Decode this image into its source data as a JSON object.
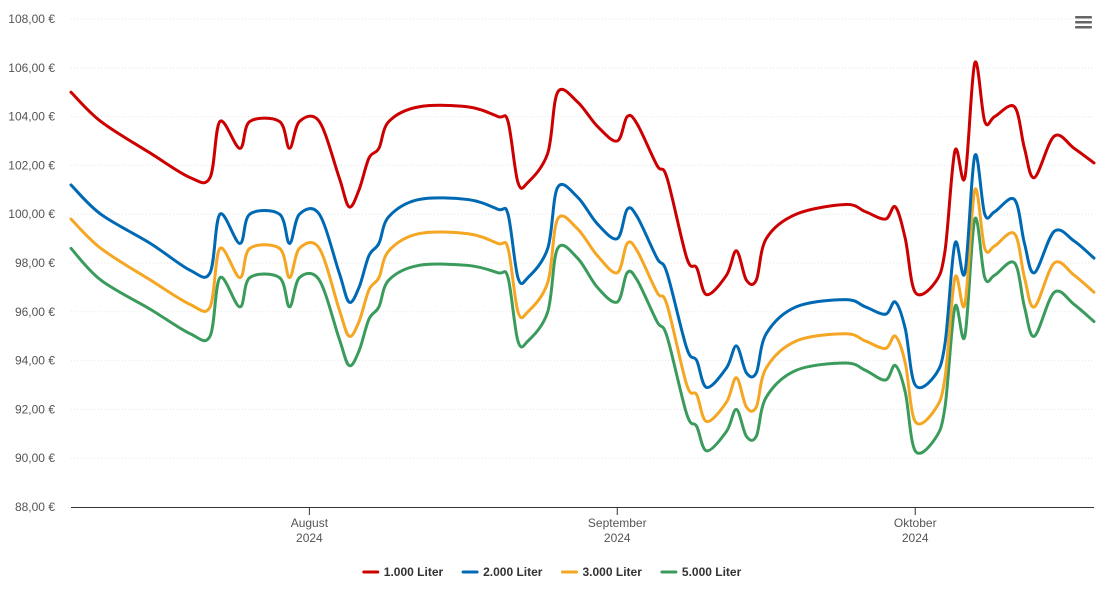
{
  "chart_data": {
    "type": "line",
    "title": "",
    "xlabel": "",
    "ylabel": "",
    "ylim": [
      88,
      108
    ],
    "y_ticks": [
      "88,00 €",
      "90,00 €",
      "92,00 €",
      "94,00 €",
      "96,00 €",
      "98,00 €",
      "100,00 €",
      "102,00 €",
      "104,00 €",
      "106,00 €",
      "108,00 €"
    ],
    "x_range": [
      "2024-07-08",
      "2024-10-19"
    ],
    "x_ticks": [
      {
        "date": "2024-08-01",
        "month": "August",
        "year": "2024"
      },
      {
        "date": "2024-09-01",
        "month": "September",
        "year": "2024"
      },
      {
        "date": "2024-10-01",
        "month": "Oktober",
        "year": "2024"
      }
    ],
    "grid": true,
    "legend_position": "bottom-center",
    "series": [
      {
        "name": "1.000 Liter",
        "color": "#cc0000",
        "points": [
          [
            "2024-07-08",
            105.0
          ],
          [
            "2024-07-11",
            103.8
          ],
          [
            "2024-07-16",
            102.5
          ],
          [
            "2024-07-20",
            101.5
          ],
          [
            "2024-07-22",
            101.5
          ],
          [
            "2024-07-23",
            103.8
          ],
          [
            "2024-07-25",
            102.7
          ],
          [
            "2024-07-26",
            103.8
          ],
          [
            "2024-07-29",
            103.8
          ],
          [
            "2024-07-30",
            102.7
          ],
          [
            "2024-07-31",
            103.8
          ],
          [
            "2024-08-02",
            103.8
          ],
          [
            "2024-08-04",
            101.5
          ],
          [
            "2024-08-05",
            100.3
          ],
          [
            "2024-08-06",
            101.0
          ],
          [
            "2024-08-07",
            102.3
          ],
          [
            "2024-08-08",
            102.7
          ],
          [
            "2024-08-09",
            103.8
          ],
          [
            "2024-08-12",
            104.4
          ],
          [
            "2024-08-17",
            104.4
          ],
          [
            "2024-08-20",
            104.0
          ],
          [
            "2024-08-21",
            103.8
          ],
          [
            "2024-08-22",
            101.3
          ],
          [
            "2024-08-23",
            101.3
          ],
          [
            "2024-08-25",
            102.5
          ],
          [
            "2024-08-26",
            105.0
          ],
          [
            "2024-08-28",
            104.6
          ],
          [
            "2024-08-30",
            103.6
          ],
          [
            "2024-09-01",
            103.0
          ],
          [
            "2024-09-02",
            104.0
          ],
          [
            "2024-09-03",
            103.7
          ],
          [
            "2024-09-05",
            102.0
          ],
          [
            "2024-09-06",
            101.5
          ],
          [
            "2024-09-08",
            98.2
          ],
          [
            "2024-09-09",
            97.8
          ],
          [
            "2024-09-10",
            96.7
          ],
          [
            "2024-09-12",
            97.5
          ],
          [
            "2024-09-13",
            98.5
          ],
          [
            "2024-09-14",
            97.3
          ],
          [
            "2024-09-15",
            97.3
          ],
          [
            "2024-09-16",
            99.0
          ],
          [
            "2024-09-19",
            100.0
          ],
          [
            "2024-09-24",
            100.4
          ],
          [
            "2024-09-26",
            100.1
          ],
          [
            "2024-09-28",
            99.8
          ],
          [
            "2024-09-29",
            100.3
          ],
          [
            "2024-09-30",
            99.0
          ],
          [
            "2024-10-01",
            96.8
          ],
          [
            "2024-10-03",
            97.2
          ],
          [
            "2024-10-04",
            98.5
          ],
          [
            "2024-10-05",
            102.6
          ],
          [
            "2024-10-06",
            101.5
          ],
          [
            "2024-10-07",
            106.2
          ],
          [
            "2024-10-08",
            103.8
          ],
          [
            "2024-10-09",
            104.0
          ],
          [
            "2024-10-11",
            104.4
          ],
          [
            "2024-10-12",
            102.7
          ],
          [
            "2024-10-13",
            101.5
          ],
          [
            "2024-10-15",
            103.2
          ],
          [
            "2024-10-17",
            102.7
          ],
          [
            "2024-10-19",
            102.1
          ]
        ]
      },
      {
        "name": "2.000 Liter",
        "color": "#0069b4",
        "points": [
          [
            "2024-07-08",
            101.2
          ],
          [
            "2024-07-11",
            100.0
          ],
          [
            "2024-07-16",
            98.8
          ],
          [
            "2024-07-20",
            97.7
          ],
          [
            "2024-07-22",
            97.6
          ],
          [
            "2024-07-23",
            100.0
          ],
          [
            "2024-07-25",
            98.8
          ],
          [
            "2024-07-26",
            100.0
          ],
          [
            "2024-07-29",
            100.0
          ],
          [
            "2024-07-30",
            98.8
          ],
          [
            "2024-07-31",
            100.0
          ],
          [
            "2024-08-02",
            100.0
          ],
          [
            "2024-08-04",
            97.6
          ],
          [
            "2024-08-05",
            96.4
          ],
          [
            "2024-08-06",
            97.0
          ],
          [
            "2024-08-07",
            98.3
          ],
          [
            "2024-08-08",
            98.8
          ],
          [
            "2024-08-09",
            99.9
          ],
          [
            "2024-08-12",
            100.6
          ],
          [
            "2024-08-17",
            100.6
          ],
          [
            "2024-08-20",
            100.2
          ],
          [
            "2024-08-21",
            100.0
          ],
          [
            "2024-08-22",
            97.4
          ],
          [
            "2024-08-23",
            97.4
          ],
          [
            "2024-08-25",
            98.6
          ],
          [
            "2024-08-26",
            101.1
          ],
          [
            "2024-08-28",
            100.7
          ],
          [
            "2024-08-30",
            99.6
          ],
          [
            "2024-09-01",
            99.0
          ],
          [
            "2024-09-02",
            100.2
          ],
          [
            "2024-09-03",
            99.9
          ],
          [
            "2024-09-05",
            98.2
          ],
          [
            "2024-09-06",
            97.6
          ],
          [
            "2024-09-08",
            94.5
          ],
          [
            "2024-09-09",
            94.0
          ],
          [
            "2024-09-10",
            92.9
          ],
          [
            "2024-09-12",
            93.7
          ],
          [
            "2024-09-13",
            94.6
          ],
          [
            "2024-09-14",
            93.5
          ],
          [
            "2024-09-15",
            93.5
          ],
          [
            "2024-09-16",
            95.1
          ],
          [
            "2024-09-19",
            96.2
          ],
          [
            "2024-09-24",
            96.5
          ],
          [
            "2024-09-26",
            96.2
          ],
          [
            "2024-09-28",
            95.9
          ],
          [
            "2024-09-29",
            96.4
          ],
          [
            "2024-09-30",
            95.3
          ],
          [
            "2024-10-01",
            93.0
          ],
          [
            "2024-10-03",
            93.4
          ],
          [
            "2024-10-04",
            94.7
          ],
          [
            "2024-10-05",
            98.8
          ],
          [
            "2024-10-06",
            97.6
          ],
          [
            "2024-10-07",
            102.4
          ],
          [
            "2024-10-08",
            100.0
          ],
          [
            "2024-10-09",
            100.1
          ],
          [
            "2024-10-11",
            100.6
          ],
          [
            "2024-10-12",
            98.8
          ],
          [
            "2024-10-13",
            97.6
          ],
          [
            "2024-10-15",
            99.3
          ],
          [
            "2024-10-17",
            98.9
          ],
          [
            "2024-10-19",
            98.2
          ]
        ]
      },
      {
        "name": "3.000 Liter",
        "color": "#f5a623",
        "points": [
          [
            "2024-07-08",
            99.8
          ],
          [
            "2024-07-11",
            98.6
          ],
          [
            "2024-07-16",
            97.3
          ],
          [
            "2024-07-20",
            96.3
          ],
          [
            "2024-07-22",
            96.2
          ],
          [
            "2024-07-23",
            98.6
          ],
          [
            "2024-07-25",
            97.4
          ],
          [
            "2024-07-26",
            98.6
          ],
          [
            "2024-07-29",
            98.6
          ],
          [
            "2024-07-30",
            97.4
          ],
          [
            "2024-07-31",
            98.6
          ],
          [
            "2024-08-02",
            98.6
          ],
          [
            "2024-08-04",
            96.1
          ],
          [
            "2024-08-05",
            95.0
          ],
          [
            "2024-08-06",
            95.6
          ],
          [
            "2024-08-07",
            96.9
          ],
          [
            "2024-08-08",
            97.4
          ],
          [
            "2024-08-09",
            98.5
          ],
          [
            "2024-08-12",
            99.2
          ],
          [
            "2024-08-17",
            99.2
          ],
          [
            "2024-08-20",
            98.8
          ],
          [
            "2024-08-21",
            98.6
          ],
          [
            "2024-08-22",
            96.0
          ],
          [
            "2024-08-23",
            96.0
          ],
          [
            "2024-08-25",
            97.2
          ],
          [
            "2024-08-26",
            99.8
          ],
          [
            "2024-08-28",
            99.4
          ],
          [
            "2024-08-30",
            98.3
          ],
          [
            "2024-09-01",
            97.6
          ],
          [
            "2024-09-02",
            98.8
          ],
          [
            "2024-09-03",
            98.5
          ],
          [
            "2024-09-05",
            96.8
          ],
          [
            "2024-09-06",
            96.3
          ],
          [
            "2024-09-08",
            93.0
          ],
          [
            "2024-09-09",
            92.6
          ],
          [
            "2024-09-10",
            91.5
          ],
          [
            "2024-09-12",
            92.3
          ],
          [
            "2024-09-13",
            93.3
          ],
          [
            "2024-09-14",
            92.1
          ],
          [
            "2024-09-15",
            92.1
          ],
          [
            "2024-09-16",
            93.7
          ],
          [
            "2024-09-19",
            94.8
          ],
          [
            "2024-09-24",
            95.1
          ],
          [
            "2024-09-26",
            94.8
          ],
          [
            "2024-09-28",
            94.5
          ],
          [
            "2024-09-29",
            95.0
          ],
          [
            "2024-09-30",
            93.9
          ],
          [
            "2024-10-01",
            91.5
          ],
          [
            "2024-10-03",
            92.0
          ],
          [
            "2024-10-04",
            93.3
          ],
          [
            "2024-10-05",
            97.4
          ],
          [
            "2024-10-06",
            96.3
          ],
          [
            "2024-10-07",
            101.0
          ],
          [
            "2024-10-08",
            98.6
          ],
          [
            "2024-10-09",
            98.7
          ],
          [
            "2024-10-11",
            99.2
          ],
          [
            "2024-10-12",
            97.4
          ],
          [
            "2024-10-13",
            96.2
          ],
          [
            "2024-10-15",
            98.0
          ],
          [
            "2024-10-17",
            97.5
          ],
          [
            "2024-10-19",
            96.8
          ]
        ]
      },
      {
        "name": "5.000 Liter",
        "color": "#3a9b5c",
        "points": [
          [
            "2024-07-08",
            98.6
          ],
          [
            "2024-07-11",
            97.3
          ],
          [
            "2024-07-16",
            96.1
          ],
          [
            "2024-07-20",
            95.1
          ],
          [
            "2024-07-22",
            95.0
          ],
          [
            "2024-07-23",
            97.4
          ],
          [
            "2024-07-25",
            96.2
          ],
          [
            "2024-07-26",
            97.4
          ],
          [
            "2024-07-29",
            97.4
          ],
          [
            "2024-07-30",
            96.2
          ],
          [
            "2024-07-31",
            97.4
          ],
          [
            "2024-08-02",
            97.3
          ],
          [
            "2024-08-04",
            94.9
          ],
          [
            "2024-08-05",
            93.8
          ],
          [
            "2024-08-06",
            94.4
          ],
          [
            "2024-08-07",
            95.7
          ],
          [
            "2024-08-08",
            96.2
          ],
          [
            "2024-08-09",
            97.3
          ],
          [
            "2024-08-12",
            97.9
          ],
          [
            "2024-08-17",
            97.9
          ],
          [
            "2024-08-20",
            97.6
          ],
          [
            "2024-08-21",
            97.4
          ],
          [
            "2024-08-22",
            94.8
          ],
          [
            "2024-08-23",
            94.8
          ],
          [
            "2024-08-25",
            96.0
          ],
          [
            "2024-08-26",
            98.6
          ],
          [
            "2024-08-28",
            98.2
          ],
          [
            "2024-08-30",
            97.0
          ],
          [
            "2024-09-01",
            96.4
          ],
          [
            "2024-09-02",
            97.6
          ],
          [
            "2024-09-03",
            97.3
          ],
          [
            "2024-09-05",
            95.6
          ],
          [
            "2024-09-06",
            95.0
          ],
          [
            "2024-09-08",
            91.8
          ],
          [
            "2024-09-09",
            91.3
          ],
          [
            "2024-09-10",
            90.3
          ],
          [
            "2024-09-12",
            91.1
          ],
          [
            "2024-09-13",
            92.0
          ],
          [
            "2024-09-14",
            90.9
          ],
          [
            "2024-09-15",
            90.9
          ],
          [
            "2024-09-16",
            92.5
          ],
          [
            "2024-09-19",
            93.6
          ],
          [
            "2024-09-24",
            93.9
          ],
          [
            "2024-09-26",
            93.6
          ],
          [
            "2024-09-28",
            93.2
          ],
          [
            "2024-09-29",
            93.8
          ],
          [
            "2024-09-30",
            92.7
          ],
          [
            "2024-10-01",
            90.3
          ],
          [
            "2024-10-03",
            90.8
          ],
          [
            "2024-10-04",
            92.1
          ],
          [
            "2024-10-05",
            96.2
          ],
          [
            "2024-10-06",
            95.0
          ],
          [
            "2024-10-07",
            99.8
          ],
          [
            "2024-10-08",
            97.4
          ],
          [
            "2024-10-09",
            97.5
          ],
          [
            "2024-10-11",
            98.0
          ],
          [
            "2024-10-12",
            96.2
          ],
          [
            "2024-10-13",
            95.0
          ],
          [
            "2024-10-15",
            96.8
          ],
          [
            "2024-10-17",
            96.3
          ],
          [
            "2024-10-19",
            95.6
          ]
        ]
      }
    ]
  },
  "ui": {
    "menu_icon": "hamburger-menu-icon"
  }
}
